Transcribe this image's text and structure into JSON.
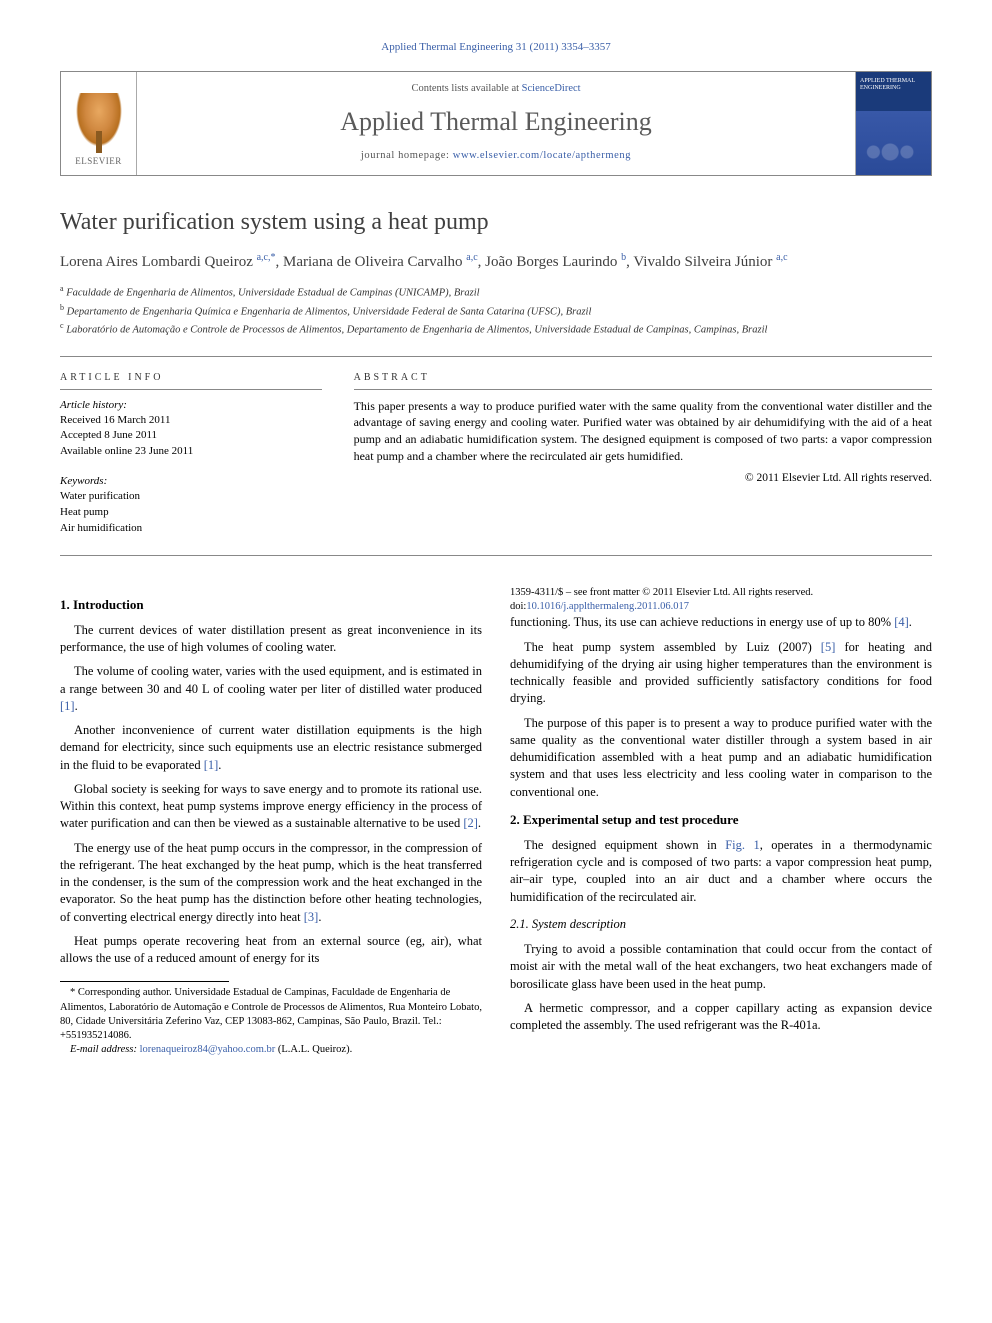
{
  "journal_ref": "Applied Thermal Engineering 31 (2011) 3354–3357",
  "header": {
    "contents_prefix": "Contents lists available at ",
    "contents_link": "ScienceDirect",
    "journal_name": "Applied Thermal Engineering",
    "homepage_prefix": "journal homepage: ",
    "homepage_url": "www.elsevier.com/locate/apthermeng",
    "elsevier_label": "ELSEVIER",
    "cover_text": "APPLIED THERMAL ENGINEERING"
  },
  "article": {
    "title": "Water purification system using a heat pump",
    "authors_html": "Lorena Aires Lombardi Queiroz <sup>a,c,*</sup>, Mariana de Oliveira Carvalho <sup>a,c</sup>, João Borges Laurindo <sup>b</sup>, Vivaldo Silveira Júnior <sup>a,c</sup>",
    "affiliations": [
      "a Faculdade de Engenharia de Alimentos, Universidade Estadual de Campinas (UNICAMP), Brazil",
      "b Departamento de Engenharia Química e Engenharia de Alimentos, Universidade Federal de Santa Catarina (UFSC), Brazil",
      "c Laboratório de Automação e Controle de Processos de Alimentos, Departamento de Engenharia de Alimentos, Universidade Estadual de Campinas, Campinas, Brazil"
    ]
  },
  "info": {
    "label": "ARTICLE INFO",
    "history_label": "Article history:",
    "history": [
      "Received 16 March 2011",
      "Accepted 8 June 2011",
      "Available online 23 June 2011"
    ],
    "keywords_label": "Keywords:",
    "keywords": [
      "Water purification",
      "Heat pump",
      "Air humidification"
    ]
  },
  "abstract": {
    "label": "ABSTRACT",
    "text": "This paper presents a way to produce purified water with the same quality from the conventional water distiller and the advantage of saving energy and cooling water. Purified water was obtained by air dehumidifying with the aid of a heat pump and an adiabatic humidification system. The designed equipment is composed of two parts: a vapor compression heat pump and a chamber where the recirculated air gets humidified.",
    "copyright": "© 2011 Elsevier Ltd. All rights reserved."
  },
  "body": {
    "s1_title": "1.  Introduction",
    "p1": "The current devices of water distillation present as great inconvenience in its performance, the use of high volumes of cooling water.",
    "p2a": "The volume of cooling water, varies with the used equipment, and is estimated in a range between 30 and 40 L of cooling water per liter of distilled water produced ",
    "p2_ref": "[1]",
    "p2b": ".",
    "p3a": "Another inconvenience of current water distillation equipments is the high demand for electricity, since such equipments use an electric resistance submerged in the fluid to be evaporated ",
    "p3_ref": "[1]",
    "p3b": ".",
    "p4a": "Global society is seeking for ways to save energy and to promote its rational use. Within this context, heat pump systems improve energy efficiency in the process of water purification and can then be viewed as a sustainable alternative to be used ",
    "p4_ref": "[2]",
    "p4b": ".",
    "p5a": "The energy use of the heat pump occurs in the compressor, in the compression of the refrigerant. The heat exchanged by the heat pump, which is the heat transferred in the condenser, is the sum of the compression work and the heat exchanged in the evaporator. So the heat pump has the distinction before other heating technologies, of converting electrical energy directly into heat ",
    "p5_ref": "[3]",
    "p5b": ".",
    "p6a": "Heat pumps operate recovering heat from an external source (eg, air), what allows the use of a reduced amount of energy for its ",
    "p6b": "functioning. Thus, its use can achieve reductions in energy use of up to 80% ",
    "p6_ref": "[4]",
    "p6c": ".",
    "p7a": "The heat pump system assembled by Luiz (2007) ",
    "p7_ref": "[5]",
    "p7b": " for heating and dehumidifying of the drying air using higher temperatures than the environment is technically feasible and provided sufficiently satisfactory conditions for food drying.",
    "p8": "The purpose of this paper is to present a way to produce purified water with the same quality as the conventional water distiller through a system based in air dehumidification assembled with a heat pump and an adiabatic humidification system and that uses less electricity and less cooling water in comparison to the conventional one.",
    "s2_title": "2.  Experimental setup and test procedure",
    "p9a": "The designed equipment shown in ",
    "p9_ref": "Fig. 1",
    "p9b": ", operates in a thermodynamic refrigeration cycle and is composed of two parts: a vapor compression heat pump, air–air type, coupled into an air duct and a chamber where occurs the humidification of the recirculated air.",
    "s21_title": "2.1.  System description",
    "p10": "Trying to avoid a possible contamination that could occur from the contact of moist air with the metal wall of the heat exchangers, two heat exchangers made of borosilicate glass have been used in the heat pump.",
    "p11": "A hermetic compressor, and a copper capillary acting as expansion device completed the assembly. The used refrigerant was the R-401a."
  },
  "footnote": {
    "corr": "* Corresponding author. Universidade Estadual de Campinas, Faculdade de Engenharia de Alimentos, Laboratório de Automação e Controle de Processos de Alimentos, Rua Monteiro Lobato, 80, Cidade Universitária Zeferino Vaz, CEP 13083-862, Campinas, São Paulo, Brazil. Tel.: +551935214086.",
    "email_label": "E-mail address: ",
    "email": "lorenaqueiroz84@yahoo.com.br",
    "email_suffix": " (L.A.L. Queiroz)."
  },
  "doi": {
    "line1": "1359-4311/$ – see front matter © 2011 Elsevier Ltd. All rights reserved.",
    "doi_prefix": "doi:",
    "doi": "10.1016/j.applthermaleng.2011.06.017"
  },
  "colors": {
    "link": "#3a5fa8",
    "text": "#000000",
    "grey_text": "#404040",
    "rule": "#888888",
    "cover_top": "#1a3a7a",
    "cover_bottom": "#2a4a98"
  }
}
